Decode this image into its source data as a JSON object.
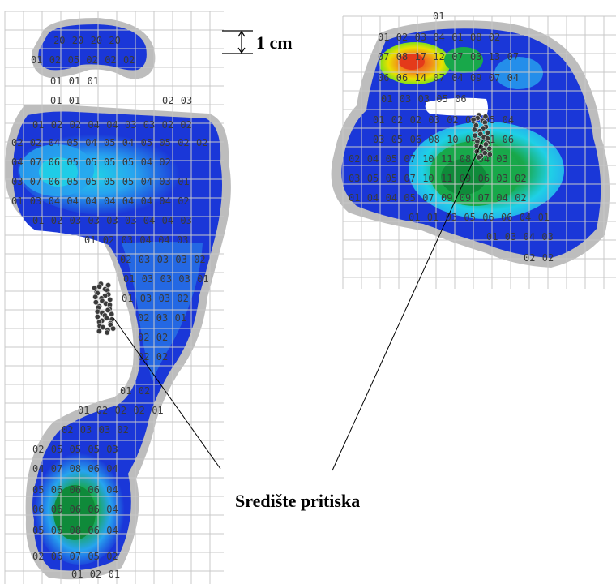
{
  "labels": {
    "scale": "1 cm",
    "center_of_pressure": "Središte pritiska"
  },
  "colors": {
    "grid": "#c8c8c8",
    "outline": "#bdbdbd",
    "low": "#1a37d8",
    "mid": "#27a4ef",
    "cyan": "#1fd0e6",
    "green": "#18a84a",
    "dark_green": "#0f8a3a",
    "yellow": "#e9e100",
    "red": "#e43a1a",
    "cop": "#3a3a3a"
  },
  "left_foot": {
    "rows": [
      [
        "20",
        "20",
        "20",
        "20"
      ],
      [
        "01",
        "02",
        "05",
        "02",
        "02",
        "02"
      ],
      [
        "01",
        "01",
        "01"
      ],
      [
        "01",
        "01"
      ],
      [
        "02",
        "03"
      ],
      [
        "01",
        "02",
        "02",
        "04",
        "04",
        "03",
        "03",
        "02",
        "02"
      ],
      [
        "02",
        "02",
        "04",
        "05",
        "04",
        "05",
        "04",
        "05",
        "05",
        "02",
        "02"
      ],
      [
        "04",
        "07",
        "06",
        "05",
        "05",
        "05",
        "05",
        "04",
        "02"
      ],
      [
        "03",
        "07",
        "06",
        "05",
        "05",
        "05",
        "05",
        "04",
        "03",
        "01"
      ],
      [
        "01",
        "03",
        "04",
        "04",
        "04",
        "04",
        "04",
        "04",
        "04",
        "02"
      ],
      [
        "01",
        "02",
        "03",
        "03",
        "03",
        "03",
        "04",
        "04",
        "03"
      ],
      [
        "01",
        "02",
        "03",
        "04",
        "04",
        "03"
      ],
      [
        "02",
        "03",
        "03",
        "03",
        "02"
      ],
      [
        "01",
        "03",
        "03",
        "03",
        "01"
      ],
      [
        "01",
        "03",
        "03",
        "02"
      ],
      [
        "02",
        "03",
        "01"
      ],
      [
        "02",
        "02"
      ],
      [
        "02",
        "02"
      ],
      [
        "01",
        "02"
      ],
      [
        "01",
        "02",
        "02",
        "02",
        "01"
      ],
      [
        "02",
        "03",
        "03",
        "02"
      ],
      [
        "02",
        "05",
        "05",
        "05",
        "03"
      ],
      [
        "04",
        "07",
        "08",
        "06",
        "04"
      ],
      [
        "05",
        "06",
        "06",
        "06",
        "04"
      ],
      [
        "06",
        "06",
        "06",
        "06",
        "04"
      ],
      [
        "05",
        "06",
        "08",
        "06",
        "04"
      ],
      [
        "02",
        "06",
        "07",
        "05",
        "02"
      ],
      [
        "01",
        "02",
        "01"
      ]
    ]
  },
  "right_foot": {
    "rows": [
      [
        "01"
      ],
      [
        "01",
        "02",
        "03",
        "04",
        "01",
        "08",
        "02"
      ],
      [
        "07",
        "08",
        "17",
        "12",
        "07",
        "03",
        "13",
        "07"
      ],
      [
        "06",
        "06",
        "14",
        "07",
        "04",
        "09",
        "07",
        "04"
      ],
      [
        "01",
        "03",
        "03",
        "05",
        "06"
      ],
      [
        "01",
        "02",
        "02",
        "03",
        "02",
        "02",
        "05",
        "04"
      ],
      [
        "03",
        "05",
        "06",
        "08",
        "10",
        "04",
        "01",
        "06"
      ],
      [
        "02",
        "04",
        "05",
        "07",
        "10",
        "11",
        "08",
        "04",
        "03"
      ],
      [
        "03",
        "05",
        "05",
        "07",
        "10",
        "11",
        "09",
        "06",
        "03",
        "02"
      ],
      [
        "01",
        "04",
        "04",
        "05",
        "07",
        "09",
        "09",
        "07",
        "04",
        "02"
      ],
      [
        "01",
        "01",
        "03",
        "05",
        "06",
        "06",
        "04",
        "01"
      ],
      [
        "01",
        "03",
        "04",
        "03"
      ],
      [
        "02",
        "02"
      ]
    ]
  }
}
